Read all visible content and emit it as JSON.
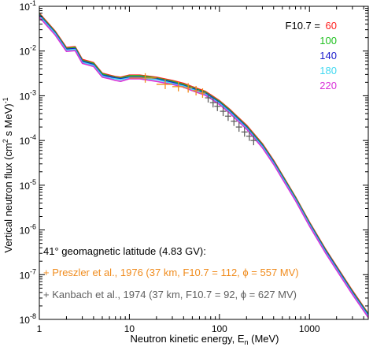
{
  "chart_data": {
    "type": "line",
    "xlabel": "Neutron kinetic energy, E",
    "xlabel_sub": "n",
    "xlabel_unit": " (MeV)",
    "ylabel_pre": "Vertical neutron flux (cm",
    "ylabel_sup1": "2",
    "ylabel_mid": " s MeV)",
    "ylabel_sup2": "-1",
    "x_scale": "log",
    "y_scale": "log",
    "xlim": [
      1,
      4500
    ],
    "ylim": [
      1e-08,
      0.1
    ],
    "x_ticks": [
      {
        "value": 1,
        "label": "1"
      },
      {
        "value": 10,
        "label": "10"
      },
      {
        "value": 100,
        "label": "100"
      },
      {
        "value": 1000,
        "label": "1000"
      }
    ],
    "y_ticks": [
      {
        "value": 1e-08,
        "base": "10",
        "exp": "-8"
      },
      {
        "value": 1e-07,
        "base": "10",
        "exp": "-7"
      },
      {
        "value": 1e-06,
        "base": "10",
        "exp": "-6"
      },
      {
        "value": 1e-05,
        "base": "10",
        "exp": "-5"
      },
      {
        "value": 0.0001,
        "base": "10",
        "exp": "-4"
      },
      {
        "value": 0.001,
        "base": "10",
        "exp": "-3"
      },
      {
        "value": 0.01,
        "base": "10",
        "exp": "-2"
      },
      {
        "value": 0.1,
        "base": "10",
        "exp": "-1"
      }
    ],
    "legend_title": "F10.7 = ",
    "legend_placement": "top-right",
    "x": [
      1,
      1.5,
      2,
      2.5,
      3,
      4,
      5,
      6,
      7,
      8,
      10,
      13,
      20,
      30,
      40,
      50,
      60,
      70,
      80,
      100,
      130,
      150,
      200,
      300,
      400,
      500,
      700,
      1000,
      1500,
      2000,
      3000,
      4500
    ],
    "series": [
      {
        "name": "60",
        "color": "#ff2020",
        "values": [
          0.07,
          0.028,
          0.012,
          0.0125,
          0.0065,
          0.0055,
          0.0032,
          0.0029,
          0.0027,
          0.0026,
          0.0029,
          0.0029,
          0.0026,
          0.0022,
          0.0019,
          0.0016,
          0.0014,
          0.00125,
          0.00105,
          0.00078,
          0.0005,
          0.00038,
          0.00022,
          8.5e-05,
          3.6e-05,
          1.7e-05,
          5.5e-06,
          1.5e-06,
          3.8e-07,
          1.55e-07,
          4.4e-08,
          1.35e-08
        ]
      },
      {
        "name": "100",
        "color": "#20c020",
        "values": [
          0.067,
          0.0268,
          0.0115,
          0.012,
          0.0062,
          0.0053,
          0.0031,
          0.0028,
          0.0026,
          0.0025,
          0.0028,
          0.0028,
          0.0025,
          0.0021,
          0.0018,
          0.00153,
          0.00134,
          0.0012,
          0.001,
          0.00075,
          0.00048,
          0.000364,
          0.00021,
          8.1e-05,
          3.45e-05,
          1.63e-05,
          5.3e-06,
          1.44e-06,
          3.65e-07,
          1.49e-07,
          4.2e-08,
          1.3e-08
        ]
      },
      {
        "name": "140",
        "color": "#1a1acc",
        "values": [
          0.064,
          0.0256,
          0.011,
          0.0114,
          0.0059,
          0.005,
          0.0029,
          0.0027,
          0.0025,
          0.0024,
          0.0026,
          0.0026,
          0.0024,
          0.002,
          0.0017,
          0.00146,
          0.00128,
          0.00114,
          0.00096,
          0.00071,
          0.000457,
          0.000347,
          0.0002,
          7.7e-05,
          3.29e-05,
          1.55e-05,
          5e-06,
          1.37e-06,
          3.48e-07,
          1.42e-07,
          4e-08,
          1.24e-08
        ]
      },
      {
        "name": "180",
        "color": "#40d8f0",
        "values": [
          0.061,
          0.0244,
          0.0105,
          0.0109,
          0.0056,
          0.0048,
          0.0028,
          0.0025,
          0.0024,
          0.0023,
          0.0025,
          0.0025,
          0.0023,
          0.0019,
          0.00165,
          0.00139,
          0.00122,
          0.00109,
          0.00091,
          0.00068,
          0.000435,
          0.00033,
          0.00019,
          7.4e-05,
          3.13e-05,
          1.48e-05,
          4.8e-06,
          1.31e-06,
          3.3e-07,
          1.35e-07,
          3.8e-08,
          1.18e-08
        ]
      },
      {
        "name": "220",
        "color": "#d830d8",
        "values": [
          0.057,
          0.0228,
          0.0098,
          0.0102,
          0.0053,
          0.0045,
          0.0026,
          0.0024,
          0.0022,
          0.0021,
          0.0024,
          0.0024,
          0.0021,
          0.0018,
          0.00155,
          0.0013,
          0.00114,
          0.00102,
          0.00086,
          0.00064,
          0.00041,
          0.00031,
          0.00018,
          6.9e-05,
          2.93e-05,
          1.38e-05,
          4.5e-06,
          1.22e-06,
          3.1e-07,
          1.26e-07,
          3.6e-08,
          1.1e-08
        ]
      }
    ],
    "measurements": [
      {
        "label": "+ Preszler et al., 1976 (37 km, F10.7 = 112, ϕ = 557 MV)",
        "color": "#f08c1e",
        "points": [
          {
            "x": 15,
            "y": 0.0025,
            "xerr": [
              10,
              20
            ]
          },
          {
            "x": 25,
            "y": 0.0018,
            "xerr": [
              20,
              30
            ]
          },
          {
            "x": 35,
            "y": 0.0016,
            "xerr": [
              30,
              40
            ]
          },
          {
            "x": 45,
            "y": 0.0015,
            "xerr": [
              40,
              50
            ]
          },
          {
            "x": 55,
            "y": 0.0013,
            "xerr": [
              50,
              60
            ]
          },
          {
            "x": 65,
            "y": 0.00115,
            "xerr": [
              60,
              70
            ]
          }
        ]
      },
      {
        "label": "+ Kanbach et al., 1974 (37 km, F10.7 = 92, ϕ = 627 MV)",
        "color": "#606060",
        "points": [
          {
            "x": 75,
            "y": 0.0009
          },
          {
            "x": 85,
            "y": 0.0007
          },
          {
            "x": 95,
            "y": 0.00058
          },
          {
            "x": 110,
            "y": 0.00045
          },
          {
            "x": 125,
            "y": 0.00035
          },
          {
            "x": 145,
            "y": 0.00027
          },
          {
            "x": 165,
            "y": 0.0002
          },
          {
            "x": 190,
            "y": 0.000155
          },
          {
            "x": 215,
            "y": 0.000125
          },
          {
            "x": 240,
            "y": 0.0001
          }
        ]
      }
    ],
    "annotation": "41° geomagnetic latitude (4.83 GV):"
  }
}
